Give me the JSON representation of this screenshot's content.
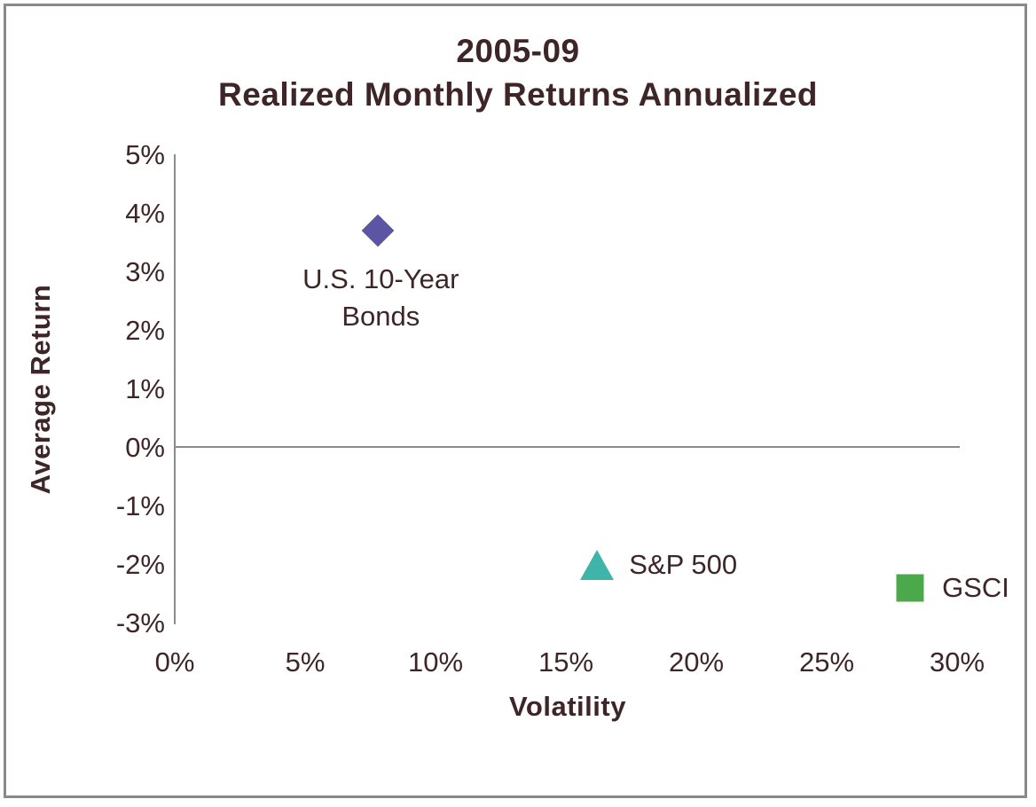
{
  "chart": {
    "title_line1": "2005-09",
    "title_line2": "Realized Monthly Returns Annualized",
    "y_axis_label": "Average Return",
    "x_axis_label": "Volatility"
  },
  "chart_data": {
    "type": "scatter",
    "title": "2005-09 Realized Monthly Returns Annualized",
    "xlabel": "Volatility",
    "ylabel": "Average Return",
    "xlim": [
      0,
      30
    ],
    "ylim": [
      -3,
      5
    ],
    "x_unit": "percent",
    "y_unit": "percent",
    "x_ticks": [
      0,
      5,
      10,
      15,
      20,
      25,
      30
    ],
    "x_tick_labels": [
      "0%",
      "5%",
      "10%",
      "15%",
      "20%",
      "25%",
      "30%"
    ],
    "y_ticks": [
      5,
      4,
      3,
      2,
      1,
      0,
      -1,
      -2,
      -3
    ],
    "y_tick_labels": [
      "5%",
      "4%",
      "3%",
      "2%",
      "1%",
      "0%",
      "-1%",
      "-2%",
      "-3%"
    ],
    "grid": false,
    "legend_position": "inline-data-labels",
    "series": [
      {
        "name": "U.S. 10-Year Bonds",
        "x": 7.8,
        "y": 3.7,
        "marker": "diamond",
        "color": "#5b55a4",
        "label_lines": [
          "U.S. 10-Year",
          "Bonds"
        ],
        "label_position": "below"
      },
      {
        "name": "S&P 500",
        "x": 16.2,
        "y": -2.0,
        "marker": "triangle",
        "color": "#3fb5a9",
        "label_lines": [
          "S&P 500"
        ],
        "label_position": "right"
      },
      {
        "name": "GSCI",
        "x": 28.2,
        "y": -2.4,
        "marker": "square",
        "color": "#4ba84b",
        "label_lines": [
          "GSCI"
        ],
        "label_position": "right"
      }
    ]
  },
  "colors": {
    "text": "#3e2628",
    "axis_line": "#8e8a8c",
    "frame_border": "#8c8889",
    "background": "#ffffff"
  }
}
